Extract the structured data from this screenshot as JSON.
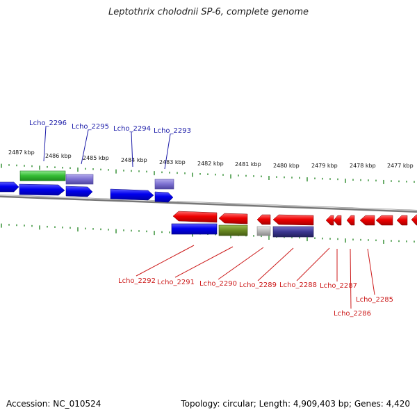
{
  "title": "Leptothrix cholodnii SP-6, complete genome",
  "footer": {
    "accession": "Accession: NC_010524",
    "info": "Topology: circular; Length: 4,909,403 bp; Genes: 4,420"
  },
  "kbp_labels": [
    "2487 kbp",
    "2486 kbp",
    "2485 kbp",
    "2484 kbp",
    "2483 kbp",
    "2482 kbp",
    "2481 kbp",
    "2480 kbp",
    "2479 kbp",
    "2478 kbp",
    "2477 kbp"
  ],
  "gene_labels_top": [
    "Lcho_2296",
    "Lcho_2295",
    "Lcho_2294",
    "Lcho_2293"
  ],
  "gene_labels_bottom": [
    "Lcho_2292",
    "Lcho_2291",
    "Lcho_2290",
    "Lcho_2289",
    "Lcho_2288",
    "Lcho_2287",
    "Lcho_2286",
    "Lcho_2285"
  ],
  "colors": {
    "forward": "#0000ee",
    "reverse": "#ee0000",
    "green": "#33bb33",
    "lavender": "#7b6fd0",
    "olive": "#6a8a22",
    "navy": "#3a3590",
    "gray": "#b8b8b8",
    "tick": "#2a8a2a",
    "label_blue": "#1a1aa8",
    "label_red": "#cc1a1a"
  }
}
